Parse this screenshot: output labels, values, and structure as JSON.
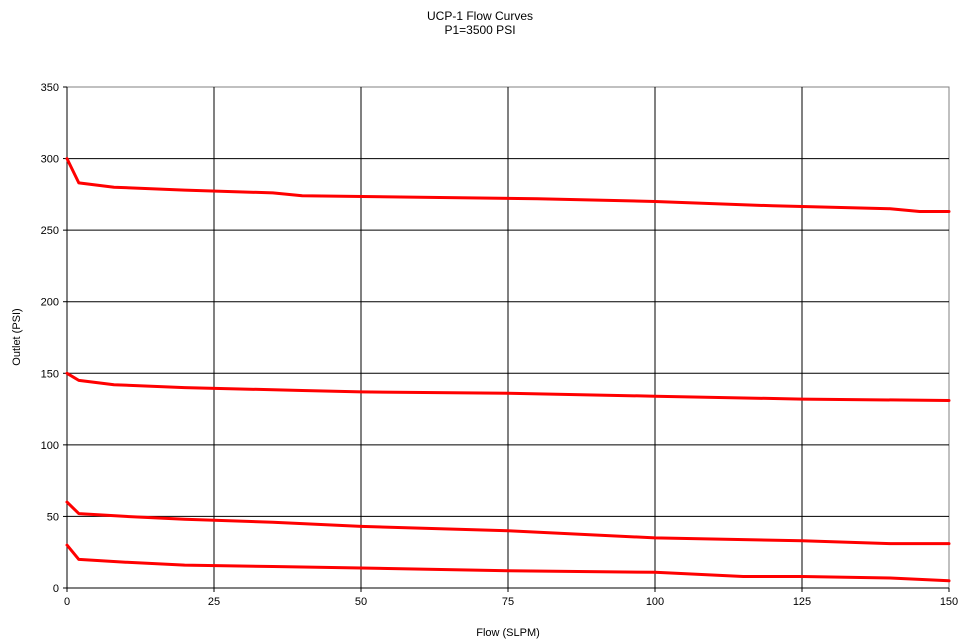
{
  "chart_data": {
    "type": "line",
    "title": "UCP-1 Flow Curves",
    "subtitle": "P1=3500 PSI",
    "xlabel": "Flow (SLPM)",
    "ylabel": "Outlet (PSI)",
    "xlim": [
      0,
      150
    ],
    "ylim": [
      0,
      350
    ],
    "x_ticks": [
      0,
      25,
      50,
      75,
      100,
      125,
      150
    ],
    "y_ticks": [
      0,
      50,
      100,
      150,
      200,
      250,
      300,
      350
    ],
    "grid": true,
    "line_color": "#ff0000",
    "series": [
      {
        "points": [
          [
            0,
            300
          ],
          [
            2,
            283
          ],
          [
            8,
            280
          ],
          [
            20,
            278
          ],
          [
            35,
            276
          ],
          [
            40,
            274
          ],
          [
            60,
            273
          ],
          [
            80,
            272
          ],
          [
            100,
            270
          ],
          [
            120,
            267
          ],
          [
            130,
            266
          ],
          [
            140,
            265
          ],
          [
            145,
            263
          ],
          [
            150,
            263
          ]
        ]
      },
      {
        "points": [
          [
            0,
            150
          ],
          [
            2,
            145
          ],
          [
            8,
            142
          ],
          [
            20,
            140
          ],
          [
            40,
            138
          ],
          [
            50,
            137
          ],
          [
            75,
            136
          ],
          [
            100,
            134
          ],
          [
            125,
            132
          ],
          [
            150,
            131
          ]
        ]
      },
      {
        "points": [
          [
            0,
            60
          ],
          [
            2,
            52
          ],
          [
            10,
            50
          ],
          [
            20,
            48
          ],
          [
            35,
            46
          ],
          [
            50,
            43
          ],
          [
            75,
            40
          ],
          [
            100,
            35
          ],
          [
            125,
            33
          ],
          [
            140,
            31
          ],
          [
            150,
            31
          ]
        ]
      },
      {
        "points": [
          [
            0,
            30
          ],
          [
            2,
            20
          ],
          [
            10,
            18
          ],
          [
            20,
            16
          ],
          [
            35,
            15
          ],
          [
            50,
            14
          ],
          [
            75,
            12
          ],
          [
            100,
            11
          ],
          [
            115,
            8
          ],
          [
            125,
            8
          ],
          [
            140,
            7
          ],
          [
            150,
            5
          ]
        ]
      }
    ]
  }
}
